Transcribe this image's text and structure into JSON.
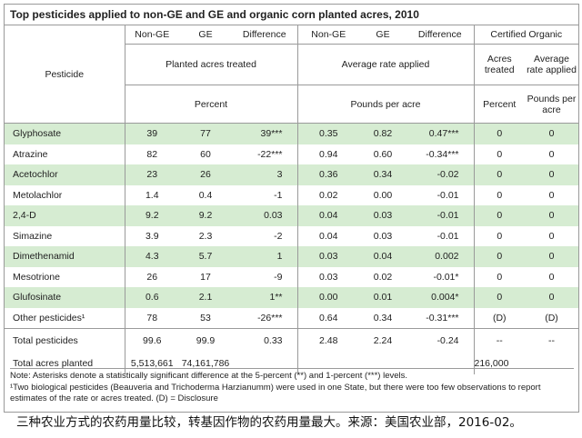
{
  "title": "Top pesticides applied to non-GE and GE and organic corn planted acres, 2010",
  "headers": {
    "pesticide": "Pesticide",
    "group1": {
      "c1": "Non-GE",
      "c2": "GE",
      "c3": "Difference",
      "measure": "Planted acres treated",
      "unit": "Percent"
    },
    "group2": {
      "c1": "Non-GE",
      "c2": "GE",
      "c3": "Difference",
      "measure": "Average rate applied",
      "unit": "Pounds per acre"
    },
    "group3": {
      "label": "Certified Organic",
      "c1": "Acres treated",
      "c2": "Average rate applied",
      "u1": "Percent",
      "u2": "Pounds per acre"
    }
  },
  "rows": [
    {
      "name": "Glyphosate",
      "a1": "39",
      "a2": "77",
      "a3": "39***",
      "b1": "0.35",
      "b2": "0.82",
      "b3": "0.47***",
      "o1": "0",
      "o2": "0"
    },
    {
      "name": "Atrazine",
      "a1": "82",
      "a2": "60",
      "a3": "-22***",
      "b1": "0.94",
      "b2": "0.60",
      "b3": "-0.34***",
      "o1": "0",
      "o2": "0"
    },
    {
      "name": "Acetochlor",
      "a1": "23",
      "a2": "26",
      "a3": "3",
      "b1": "0.36",
      "b2": "0.34",
      "b3": "-0.02",
      "o1": "0",
      "o2": "0"
    },
    {
      "name": "Metolachlor",
      "a1": "1.4",
      "a2": "0.4",
      "a3": "-1",
      "b1": "0.02",
      "b2": "0.00",
      "b3": "-0.01",
      "o1": "0",
      "o2": "0"
    },
    {
      "name": "2,4-D",
      "a1": "9.2",
      "a2": "9.2",
      "a3": "0.03",
      "b1": "0.04",
      "b2": "0.03",
      "b3": "-0.01",
      "o1": "0",
      "o2": "0"
    },
    {
      "name": "Simazine",
      "a1": "3.9",
      "a2": "2.3",
      "a3": "-2",
      "b1": "0.04",
      "b2": "0.03",
      "b3": "-0.01",
      "o1": "0",
      "o2": "0"
    },
    {
      "name": "Dimethenamid",
      "a1": "4.3",
      "a2": "5.7",
      "a3": "1",
      "b1": "0.03",
      "b2": "0.04",
      "b3": "0.002",
      "o1": "0",
      "o2": "0"
    },
    {
      "name": "Mesotrione",
      "a1": "26",
      "a2": "17",
      "a3": "-9",
      "b1": "0.03",
      "b2": "0.02",
      "b3": "-0.01*",
      "o1": "0",
      "o2": "0"
    },
    {
      "name": "Glufosinate",
      "a1": "0.6",
      "a2": "2.1",
      "a3": "1**",
      "b1": "0.00",
      "b2": "0.01",
      "b3": "0.004*",
      "o1": "0",
      "o2": "0"
    },
    {
      "name": "Other pesticides¹",
      "a1": "78",
      "a2": "53",
      "a3": "-26***",
      "b1": "0.64",
      "b2": "0.34",
      "b3": "-0.31***",
      "o1": "(D)",
      "o2": "(D)"
    }
  ],
  "totals": {
    "total_pesticides": {
      "name": "Total pesticides",
      "a1": "99.6",
      "a2": "99.9",
      "a3": "0.33",
      "b1": "2.48",
      "b2": "2.24",
      "b3": "-0.24",
      "o1": "--",
      "o2": "--"
    },
    "total_acres": {
      "name": "Total acres planted",
      "a1": "5,513,661",
      "a2": "74,161,786",
      "o1": "216,000"
    }
  },
  "notes": {
    "line1": "Note: Asterisks denote a statistically significant difference at the 5-percent (**) and 1-percent (***) levels.",
    "line2": "¹Two biological pesticides (Beauveria and Trichoderma Harzianumm) were used in one State, but there were too few observations to report estimates of the rate or acres treated. (D) = Disclosure"
  },
  "caption": "三种农业方式的农药用量比较，转基因作物的农药用量最大。来源：美国农业部，2016-02。",
  "colors": {
    "row_highlight": "#d6ecd2",
    "rule": "#9a9a9a"
  }
}
